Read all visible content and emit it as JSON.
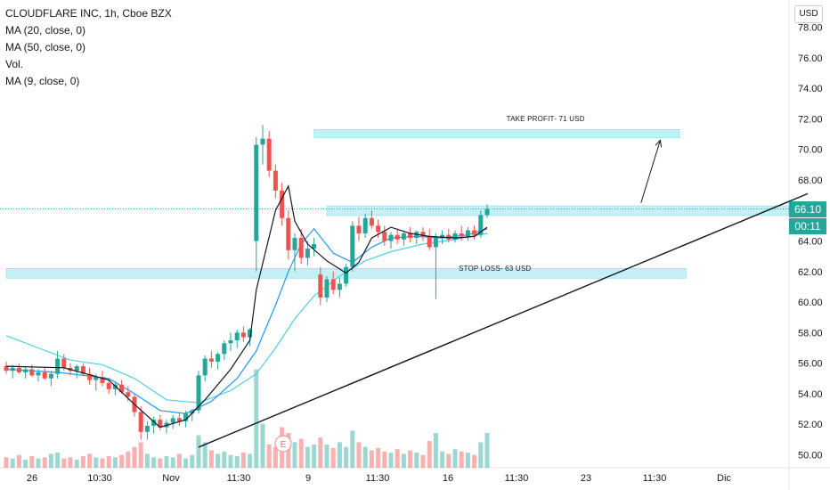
{
  "legend": {
    "title": "CLOUDFLARE INC, 1h, Cboe BZX",
    "lines": [
      "MA (20, close, 0)",
      "MA (50, close, 0)",
      "Vol.",
      "MA (9, close, 0)"
    ]
  },
  "currency_button": "USD",
  "price_tag": {
    "value": "66.10",
    "countdown": "00:11",
    "color": "#26a69a"
  },
  "annotations": {
    "take_profit": "TAKE PROFIT- 71 USD",
    "stop_loss": "STOP LOSS- 63 USD"
  },
  "earnings_marker": "E",
  "colors": {
    "up": "#26a69a",
    "down": "#ef5350",
    "zone": "#b2ebf2",
    "ma9": "#131722",
    "ma20": "#2196f3",
    "ma50": "#4dd0e1"
  },
  "chart_data": {
    "type": "candlestick",
    "y_axis": {
      "min": 50,
      "max": 78,
      "ticks": [
        "78.00",
        "76.00",
        "74.00",
        "72.00",
        "70.00",
        "68.00",
        "66.00",
        "64.00",
        "62.00",
        "60.00",
        "58.00",
        "56.00",
        "54.00",
        "52.00",
        "50.00"
      ]
    },
    "x_axis": {
      "ticks": [
        "26",
        "10:30",
        "Nov",
        "11:30",
        "9",
        "11:30",
        "16",
        "11:30",
        "23",
        "11:30",
        "Dic"
      ]
    },
    "zones": [
      {
        "label": "take_profit",
        "y_low": 71.0,
        "y_high": 71.3,
        "x_start": 48,
        "x_end": 105
      },
      {
        "label": "resistance",
        "y_low": 65.9,
        "y_high": 66.3,
        "x_start": 50,
        "x_end": 122
      },
      {
        "label": "support",
        "y_low": 61.8,
        "y_high": 62.2,
        "x_start": 0,
        "x_end": 106
      }
    ],
    "trendline": [
      [
        30,
        50.5
      ],
      [
        125,
        67.1
      ]
    ],
    "arrow": [
      [
        99,
        66.5
      ],
      [
        102,
        70.6
      ]
    ],
    "candles": [
      [
        55.8,
        56.1,
        55.3,
        55.5
      ],
      [
        55.5,
        55.9,
        55.0,
        55.7
      ],
      [
        55.7,
        56.0,
        55.3,
        55.4
      ],
      [
        55.4,
        55.8,
        55.0,
        55.6
      ],
      [
        55.6,
        55.9,
        55.1,
        55.2
      ],
      [
        55.2,
        55.6,
        54.8,
        55.4
      ],
      [
        55.4,
        55.7,
        54.9,
        55.0
      ],
      [
        55.0,
        55.5,
        54.5,
        55.3
      ],
      [
        55.3,
        56.8,
        55.0,
        56.3
      ],
      [
        56.3,
        56.6,
        55.5,
        55.7
      ],
      [
        55.7,
        56.0,
        55.2,
        55.5
      ],
      [
        55.5,
        55.9,
        55.0,
        55.8
      ],
      [
        55.8,
        56.0,
        55.2,
        55.3
      ],
      [
        55.3,
        55.7,
        54.6,
        54.9
      ],
      [
        54.9,
        55.3,
        54.2,
        55.1
      ],
      [
        55.1,
        55.5,
        54.5,
        54.7
      ],
      [
        54.7,
        55.0,
        54.0,
        54.3
      ],
      [
        54.3,
        54.8,
        53.9,
        54.6
      ],
      [
        54.6,
        54.9,
        54.0,
        54.1
      ],
      [
        54.1,
        54.5,
        53.5,
        53.8
      ],
      [
        53.8,
        54.0,
        52.5,
        52.8
      ],
      [
        52.8,
        53.2,
        51.0,
        51.5
      ],
      [
        51.5,
        52.2,
        51.0,
        51.9
      ],
      [
        51.9,
        52.5,
        51.4,
        52.3
      ],
      [
        52.3,
        52.6,
        51.6,
        51.8
      ],
      [
        51.8,
        52.3,
        51.4,
        52.1
      ],
      [
        52.1,
        52.6,
        51.7,
        52.4
      ],
      [
        52.4,
        52.8,
        51.9,
        52.2
      ],
      [
        52.2,
        52.9,
        51.8,
        52.7
      ],
      [
        52.7,
        53.0,
        52.2,
        52.9
      ],
      [
        52.9,
        55.5,
        52.7,
        55.2
      ],
      [
        55.2,
        56.5,
        54.8,
        56.3
      ],
      [
        56.3,
        56.8,
        55.7,
        56.1
      ],
      [
        56.1,
        56.7,
        55.6,
        56.6
      ],
      [
        56.6,
        57.5,
        56.2,
        57.3
      ],
      [
        57.3,
        58.0,
        56.8,
        57.5
      ],
      [
        57.5,
        58.2,
        57.0,
        58.0
      ],
      [
        58.0,
        58.4,
        57.4,
        57.7
      ],
      [
        57.7,
        58.3,
        57.1,
        58.2
      ],
      [
        64.0,
        70.8,
        62.0,
        70.3
      ],
      [
        70.3,
        71.6,
        69.0,
        70.7
      ],
      [
        70.7,
        71.2,
        68.2,
        68.6
      ],
      [
        68.6,
        69.0,
        66.8,
        67.3
      ],
      [
        67.3,
        67.8,
        65.0,
        65.5
      ],
      [
        65.5,
        66.0,
        62.8,
        63.4
      ],
      [
        63.4,
        64.5,
        62.0,
        64.2
      ],
      [
        64.2,
        64.8,
        62.5,
        62.9
      ],
      [
        62.9,
        64.0,
        62.4,
        63.5
      ],
      [
        63.5,
        64.2,
        63.0,
        63.8
      ],
      [
        61.8,
        62.3,
        59.8,
        60.3
      ],
      [
        60.3,
        61.7,
        60.0,
        61.5
      ],
      [
        61.5,
        62.0,
        60.5,
        60.8
      ],
      [
        60.8,
        61.6,
        60.3,
        61.2
      ],
      [
        61.2,
        62.5,
        61.0,
        62.3
      ],
      [
        62.3,
        65.3,
        62.0,
        65.0
      ],
      [
        65.0,
        65.6,
        64.0,
        64.5
      ],
      [
        64.5,
        65.8,
        64.2,
        65.5
      ],
      [
        65.5,
        66.0,
        64.8,
        65.0
      ],
      [
        65.0,
        65.4,
        64.2,
        64.6
      ],
      [
        64.6,
        65.0,
        63.7,
        64.0
      ],
      [
        64.0,
        64.6,
        63.5,
        64.4
      ],
      [
        64.4,
        64.8,
        63.8,
        64.1
      ],
      [
        64.1,
        64.6,
        63.7,
        64.5
      ],
      [
        64.5,
        64.9,
        63.9,
        64.2
      ],
      [
        64.2,
        64.7,
        63.8,
        64.6
      ],
      [
        64.6,
        64.9,
        64.0,
        64.3
      ],
      [
        64.3,
        64.8,
        63.4,
        63.6
      ],
      [
        63.6,
        64.5,
        60.2,
        64.2
      ],
      [
        64.2,
        64.7,
        63.8,
        64.4
      ],
      [
        64.4,
        64.8,
        63.9,
        64.1
      ],
      [
        64.1,
        64.7,
        63.9,
        64.5
      ],
      [
        64.5,
        65.0,
        64.0,
        64.3
      ],
      [
        64.3,
        64.9,
        64.0,
        64.7
      ],
      [
        64.7,
        65.0,
        64.1,
        64.4
      ],
      [
        64.4,
        66.0,
        64.2,
        65.7
      ],
      [
        65.7,
        66.4,
        65.5,
        66.1
      ]
    ],
    "volume": [
      9,
      8,
      11,
      7,
      10,
      8,
      9,
      12,
      13,
      8,
      9,
      7,
      10,
      12,
      9,
      8,
      10,
      9,
      11,
      14,
      18,
      22,
      12,
      9,
      8,
      10,
      9,
      12,
      8,
      11,
      28,
      22,
      15,
      12,
      14,
      11,
      10,
      13,
      12,
      85,
      38,
      20,
      18,
      35,
      30,
      22,
      25,
      18,
      20,
      26,
      20,
      17,
      22,
      18,
      32,
      22,
      18,
      15,
      17,
      14,
      13,
      16,
      12,
      15,
      13,
      11,
      23,
      30,
      14,
      12,
      16,
      14,
      13,
      11,
      22,
      30
    ],
    "ma9": [
      [
        0,
        55.8
      ],
      [
        9,
        55.7
      ],
      [
        16,
        54.9
      ],
      [
        20,
        53.3
      ],
      [
        24,
        51.8
      ],
      [
        28,
        52.3
      ],
      [
        31,
        53.6
      ],
      [
        35,
        55.6
      ],
      [
        38,
        57.5
      ],
      [
        39,
        60.8
      ],
      [
        42,
        66.0
      ],
      [
        44,
        67.6
      ],
      [
        45,
        65.3
      ],
      [
        47,
        63.8
      ],
      [
        50,
        62.7
      ],
      [
        53,
        61.9
      ],
      [
        55,
        62.6
      ],
      [
        57,
        64.2
      ],
      [
        60,
        64.9
      ],
      [
        63,
        64.5
      ],
      [
        66,
        64.3
      ],
      [
        70,
        64.2
      ],
      [
        73,
        64.3
      ],
      [
        75,
        64.9
      ]
    ],
    "ma20": [
      [
        0,
        55.6
      ],
      [
        8,
        55.4
      ],
      [
        16,
        55.0
      ],
      [
        20,
        54.0
      ],
      [
        24,
        52.9
      ],
      [
        28,
        52.7
      ],
      [
        32,
        53.5
      ],
      [
        36,
        55.0
      ],
      [
        39,
        56.8
      ],
      [
        42,
        59.8
      ],
      [
        44,
        62.0
      ],
      [
        46,
        63.8
      ],
      [
        48,
        64.8
      ],
      [
        51,
        63.2
      ],
      [
        54,
        62.6
      ],
      [
        57,
        63.6
      ],
      [
        60,
        64.2
      ],
      [
        64,
        64.3
      ],
      [
        68,
        64.2
      ],
      [
        72,
        64.4
      ],
      [
        75,
        64.8
      ]
    ],
    "ma50": [
      [
        0,
        57.8
      ],
      [
        5,
        57.0
      ],
      [
        10,
        56.2
      ],
      [
        15,
        55.9
      ],
      [
        20,
        55.0
      ],
      [
        25,
        53.6
      ],
      [
        30,
        53.4
      ],
      [
        35,
        54.2
      ],
      [
        39,
        55.3
      ],
      [
        42,
        57.0
      ],
      [
        45,
        58.9
      ],
      [
        48,
        60.4
      ],
      [
        52,
        61.7
      ],
      [
        56,
        62.7
      ],
      [
        60,
        63.3
      ],
      [
        65,
        63.8
      ],
      [
        70,
        64.1
      ],
      [
        75,
        64.5
      ]
    ]
  }
}
